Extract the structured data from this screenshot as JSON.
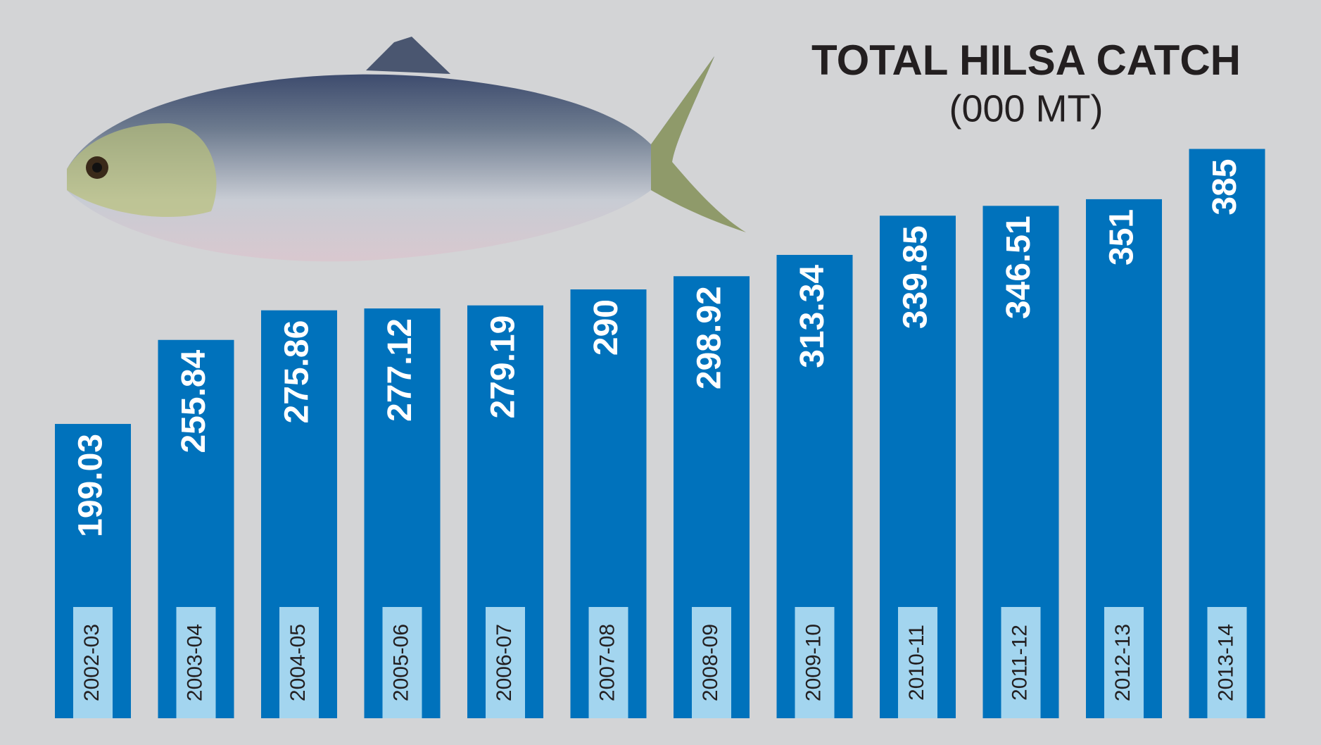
{
  "chart_data": {
    "type": "bar",
    "title": "TOTAL HILSA CATCH",
    "subtitle": "(000 MT)",
    "categories": [
      "2002-03",
      "2003-04",
      "2004-05",
      "2005-06",
      "2006-07",
      "2007-08",
      "2008-09",
      "2009-10",
      "2010-11",
      "2011-12",
      "2012-13",
      "2013-14"
    ],
    "values": [
      199.03,
      255.84,
      275.86,
      277.12,
      279.19,
      290,
      298.92,
      313.34,
      339.85,
      346.51,
      351,
      385
    ],
    "color": "#0072bc",
    "ylim": [
      0,
      400
    ]
  }
}
